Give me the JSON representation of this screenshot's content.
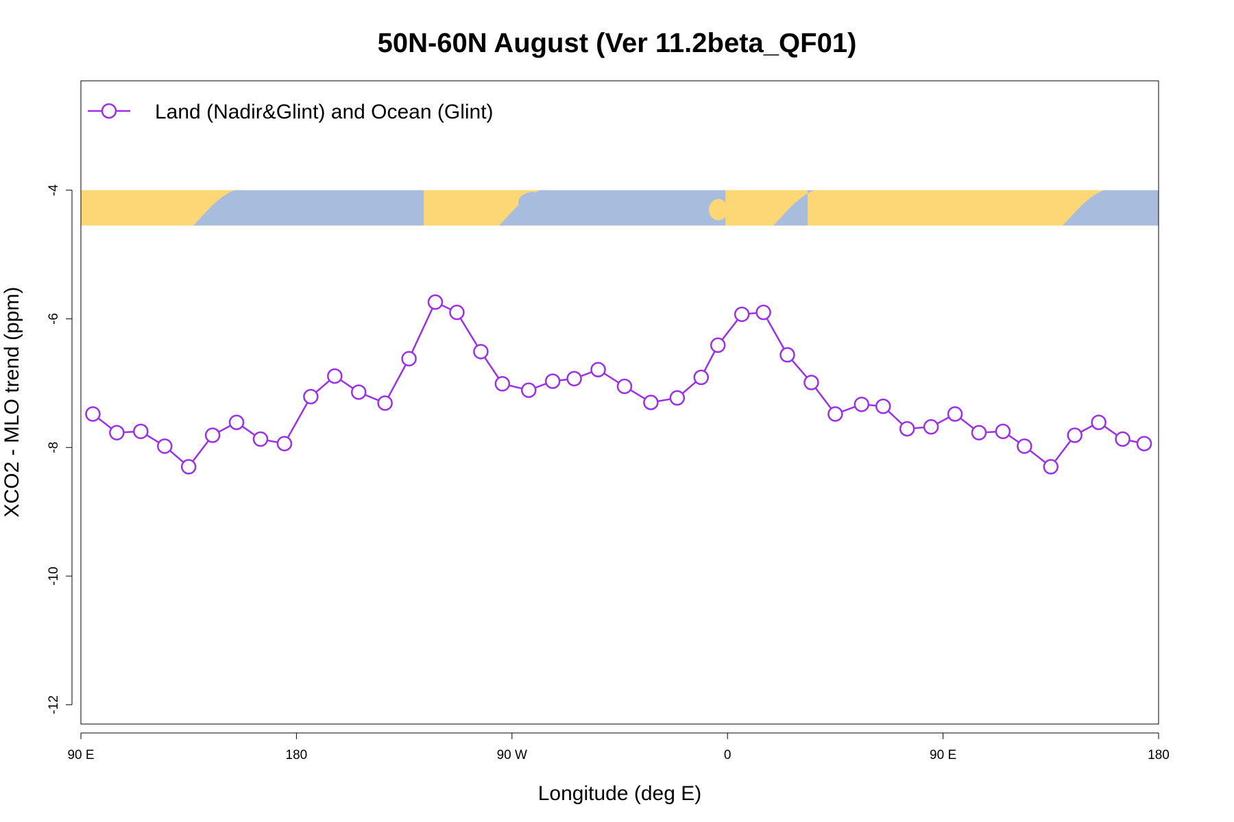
{
  "chart_data": {
    "type": "line",
    "title": "50N-60N August (Ver 11.2beta_QF01)",
    "xlabel": "Longitude (deg E)",
    "ylabel": "XCO2 - MLO trend (ppm)",
    "xlim": [
      90,
      540
    ],
    "ylim": [
      -12.3,
      -2.3
    ],
    "x_ticks": [
      {
        "value": 90,
        "label": "90 E"
      },
      {
        "value": 180,
        "label": "180"
      },
      {
        "value": 270,
        "label": "90 W"
      },
      {
        "value": 360,
        "label": "0"
      },
      {
        "value": 450,
        "label": "90 E"
      },
      {
        "value": 540,
        "label": "180"
      }
    ],
    "y_ticks": [
      {
        "value": -4,
        "label": "-4"
      },
      {
        "value": -6,
        "label": "-6"
      },
      {
        "value": -8,
        "label": "-8"
      },
      {
        "value": -10,
        "label": "-10"
      },
      {
        "value": -12,
        "label": "-12"
      }
    ],
    "map_strip": {
      "y_top": -4.0,
      "y_bottom": -4.55,
      "land_color": "#fdd675",
      "ocean_color": "#a8bddd"
    },
    "legend": {
      "placement": "top-left"
    },
    "series": [
      {
        "name": "Land (Nadir&Glint) and Ocean (Glint)",
        "color": "#9b30e8",
        "x": [
          95,
          105,
          115,
          125,
          135,
          145,
          155,
          165,
          175,
          186,
          196,
          206,
          217,
          227,
          238,
          247,
          257,
          266,
          277,
          287,
          296,
          306,
          317,
          328,
          339,
          349,
          356,
          366,
          375,
          385,
          395,
          405,
          416,
          425,
          435,
          445,
          455,
          465,
          475,
          484,
          495,
          505,
          515,
          525,
          534
        ],
        "values": [
          -7.48,
          -7.77,
          -7.75,
          -7.98,
          -8.3,
          -7.81,
          -7.61,
          -7.87,
          -7.94,
          -7.21,
          -6.89,
          -7.14,
          -7.31,
          -6.62,
          -5.74,
          -5.9,
          -6.51,
          -7.01,
          -7.11,
          -6.97,
          -6.93,
          -6.79,
          -7.05,
          -7.3,
          -7.23,
          -6.91,
          -6.41,
          -5.93,
          -5.9,
          -6.56,
          -6.99,
          -7.48,
          -7.33,
          -7.36,
          -7.71,
          -7.68,
          -7.48,
          -7.77,
          -7.75,
          -7.98,
          -8.3,
          -7.81,
          -7.61,
          -7.87,
          -7.94
        ]
      }
    ]
  }
}
